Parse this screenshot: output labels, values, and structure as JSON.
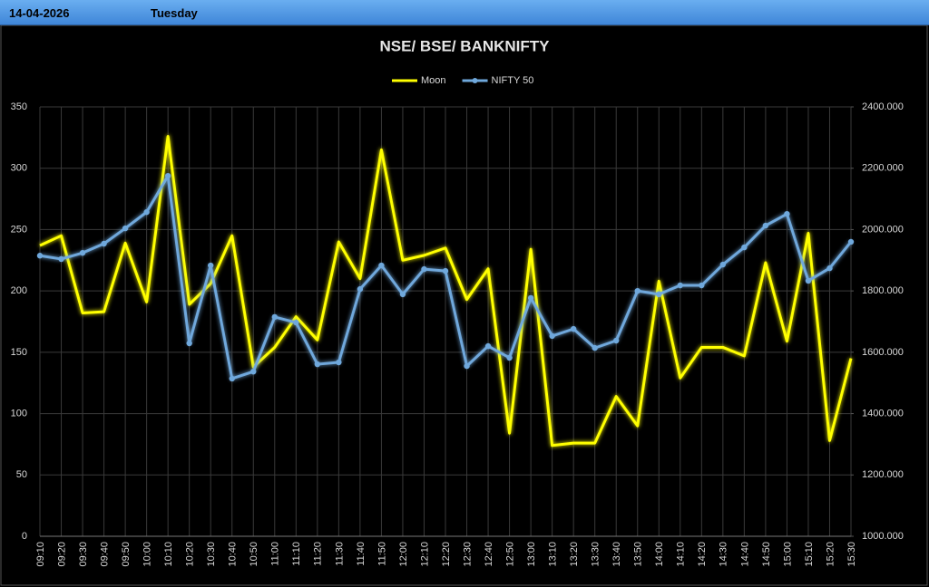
{
  "header": {
    "date": "14-04-2026",
    "day": "Tuesday"
  },
  "chart_data": {
    "type": "line",
    "title": "NSE/ BSE/ BANKNIFTY",
    "categories": [
      "09:10",
      "09:20",
      "09:30",
      "09:40",
      "09:50",
      "10:00",
      "10:10",
      "10:20",
      "10:30",
      "10:40",
      "10:50",
      "11:00",
      "11:10",
      "11:20",
      "11:30",
      "11:40",
      "11:50",
      "12:00",
      "12:10",
      "12:20",
      "12:30",
      "12:40",
      "12:50",
      "13:00",
      "13:10",
      "13:20",
      "13:30",
      "13:40",
      "13:50",
      "14:00",
      "14:10",
      "14:20",
      "14:30",
      "14:40",
      "14:50",
      "15:00",
      "15:10",
      "15:20",
      "15:30"
    ],
    "series": [
      {
        "name": "Moon",
        "color": "#ffff00",
        "markers": false,
        "values": [
          237,
          245,
          182,
          183,
          239,
          191,
          326,
          189,
          206,
          245,
          138,
          154,
          179,
          160,
          240,
          210,
          315,
          225,
          229,
          235,
          193,
          218,
          84,
          234,
          74,
          76,
          76,
          114,
          90,
          208,
          129,
          154,
          154,
          147,
          223,
          159,
          247,
          78,
          145
        ]
      },
      {
        "name": "NIFTY 50",
        "color": "#6fa8dc",
        "axis": "y2",
        "markers": true,
        "values": [
          1915,
          1904,
          1924,
          1954,
          2004,
          2057,
          2175,
          1629,
          1883,
          1514,
          1537,
          1715,
          1697,
          1561,
          1567,
          1806,
          1883,
          1789,
          1871,
          1865,
          1555,
          1620,
          1582,
          1777,
          1653,
          1676,
          1614,
          1638,
          1800,
          1789,
          1818,
          1818,
          1886,
          1942,
          2013,
          2051,
          1833,
          1874,
          1960
        ]
      }
    ],
    "ylim": [
      0,
      350
    ],
    "yticks": [
      0,
      50,
      100,
      150,
      200,
      250,
      300,
      350
    ],
    "y2lim": [
      1000,
      2400
    ],
    "y2ticks": [
      {
        "value": 1000,
        "label": "1000.000"
      },
      {
        "value": 1200,
        "label": "1200.000"
      },
      {
        "value": 1400,
        "label": "1400.000"
      },
      {
        "value": 1600,
        "label": "1600.000"
      },
      {
        "value": 1800,
        "label": "1800.000"
      },
      {
        "value": 2000,
        "label": "2000.000"
      },
      {
        "value": 2200,
        "label": "2200.000"
      },
      {
        "value": 2400,
        "label": "2400.000"
      }
    ],
    "grid": true,
    "legend": "top"
  }
}
